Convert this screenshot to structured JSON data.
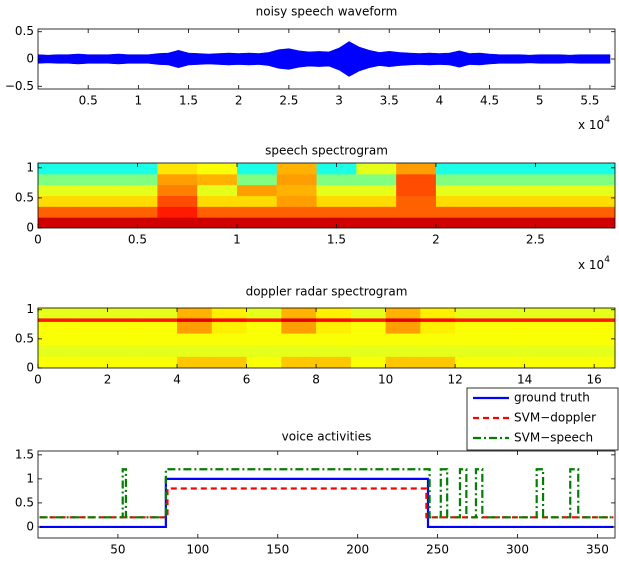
{
  "chart_data": [
    {
      "type": "waveform",
      "title": "noisy speech waveform",
      "color": "#0000ff",
      "x": [
        0,
        1000,
        2000,
        3000,
        4000,
        5000,
        6000,
        7000,
        8000,
        9000,
        10000,
        11000,
        12000,
        13000,
        14000,
        15000,
        16000,
        17000,
        18000,
        19000,
        20000,
        21000,
        22000,
        23000,
        24000,
        25000,
        26000,
        27000,
        28000,
        29000,
        30000,
        31000,
        32000,
        33000,
        34000,
        35000,
        36000,
        37000,
        38000,
        39000,
        40000,
        41000,
        42000,
        43000,
        44000,
        45000,
        46000,
        47000,
        48000,
        49000,
        50000,
        51000,
        52000,
        53000,
        54000,
        55000,
        56000,
        57000
      ],
      "values": [
        0.08,
        0.07,
        0.08,
        0.08,
        0.09,
        0.08,
        0.08,
        0.08,
        0.09,
        0.08,
        0.08,
        0.08,
        0.1,
        0.11,
        0.16,
        0.11,
        0.1,
        0.09,
        0.1,
        0.11,
        0.1,
        0.11,
        0.1,
        0.12,
        0.17,
        0.19,
        0.15,
        0.13,
        0.14,
        0.13,
        0.2,
        0.32,
        0.22,
        0.16,
        0.12,
        0.14,
        0.12,
        0.11,
        0.1,
        0.11,
        0.1,
        0.11,
        0.15,
        0.1,
        0.11,
        0.09,
        0.08,
        0.08,
        0.08,
        0.07,
        0.08,
        0.08,
        0.08,
        0.07,
        0.08,
        0.08,
        0.08,
        0.08
      ],
      "xlim": [
        0,
        57500
      ],
      "ylim": [
        -0.55,
        0.55
      ],
      "xticks": [
        {
          "value": 5000,
          "label": "0.5"
        },
        {
          "value": 10000,
          "label": "1"
        },
        {
          "value": 15000,
          "label": "1.5"
        },
        {
          "value": 20000,
          "label": "2"
        },
        {
          "value": 25000,
          "label": "2.5"
        },
        {
          "value": 30000,
          "label": "3"
        },
        {
          "value": 35000,
          "label": "3.5"
        },
        {
          "value": 40000,
          "label": "4"
        },
        {
          "value": 45000,
          "label": "4.5"
        },
        {
          "value": 50000,
          "label": "5"
        },
        {
          "value": 55000,
          "label": "5.5"
        }
      ],
      "yticks": [
        {
          "value": -0.5,
          "label": "−0.5"
        },
        0,
        0.5
      ],
      "x_multiplier": {
        "base": "x 10",
        "exponent": "4"
      }
    },
    {
      "type": "heatmap",
      "title": "speech spectrogram",
      "colormap": "jet",
      "clim": [
        0,
        1
      ],
      "x_edges": [
        0,
        2000,
        4000,
        6000,
        8000,
        10000,
        12000,
        14000,
        16000,
        18000,
        20000,
        22000,
        24000,
        26000,
        28000,
        29000
      ],
      "y_edges": [
        0,
        0.18,
        0.36,
        0.54,
        0.72,
        0.9,
        1.08
      ],
      "values": [
        [
          0.92,
          0.92,
          0.92,
          0.92,
          0.92,
          0.92,
          0.92,
          0.92,
          0.92,
          0.92,
          0.92,
          0.92,
          0.92,
          0.92,
          0.92
        ],
        [
          0.78,
          0.78,
          0.78,
          0.85,
          0.78,
          0.78,
          0.78,
          0.78,
          0.78,
          0.78,
          0.78,
          0.78,
          0.78,
          0.78,
          0.78
        ],
        [
          0.66,
          0.66,
          0.66,
          0.8,
          0.66,
          0.66,
          0.72,
          0.66,
          0.66,
          0.78,
          0.66,
          0.66,
          0.66,
          0.66,
          0.66
        ],
        [
          0.6,
          0.6,
          0.6,
          0.75,
          0.6,
          0.72,
          0.7,
          0.6,
          0.6,
          0.8,
          0.6,
          0.6,
          0.6,
          0.6,
          0.6
        ],
        [
          0.5,
          0.5,
          0.5,
          0.72,
          0.7,
          0.5,
          0.72,
          0.5,
          0.5,
          0.8,
          0.5,
          0.5,
          0.5,
          0.5,
          0.5
        ],
        [
          0.4,
          0.4,
          0.4,
          0.65,
          0.62,
          0.4,
          0.7,
          0.4,
          0.6,
          0.72,
          0.4,
          0.4,
          0.4,
          0.4,
          0.4
        ]
      ],
      "xlim": [
        0,
        29000
      ],
      "ylim": [
        0,
        1.08
      ],
      "xticks": [
        0,
        {
          "value": 5000,
          "label": "0.5"
        },
        {
          "value": 10000,
          "label": "1"
        },
        {
          "value": 15000,
          "label": "1.5"
        },
        {
          "value": 20000,
          "label": "2"
        },
        {
          "value": 25000,
          "label": "2.5"
        }
      ],
      "yticks": [
        0,
        0.5,
        1
      ],
      "x_multiplier": {
        "base": "x 10",
        "exponent": "4"
      }
    },
    {
      "type": "heatmap",
      "title": "doppler radar spectrogram",
      "colormap": "jet",
      "clim": [
        0,
        1
      ],
      "x_edges": [
        0,
        1,
        2,
        3,
        4,
        5,
        6,
        7,
        8,
        9,
        10,
        11,
        12,
        13,
        14,
        15,
        16,
        16.6
      ],
      "y_edges": [
        0,
        0.2,
        0.4,
        0.6,
        0.8,
        0.86,
        1.03
      ],
      "values": [
        [
          0.62,
          0.62,
          0.62,
          0.62,
          0.68,
          0.68,
          0.62,
          0.68,
          0.68,
          0.62,
          0.68,
          0.68,
          0.62,
          0.62,
          0.62,
          0.62,
          0.62
        ],
        [
          0.6,
          0.6,
          0.6,
          0.6,
          0.6,
          0.6,
          0.6,
          0.6,
          0.6,
          0.6,
          0.6,
          0.6,
          0.6,
          0.6,
          0.6,
          0.6,
          0.6
        ],
        [
          0.62,
          0.62,
          0.62,
          0.62,
          0.62,
          0.62,
          0.62,
          0.62,
          0.62,
          0.62,
          0.62,
          0.62,
          0.62,
          0.62,
          0.62,
          0.62,
          0.62
        ],
        [
          0.62,
          0.62,
          0.62,
          0.62,
          0.72,
          0.64,
          0.62,
          0.72,
          0.64,
          0.62,
          0.72,
          0.64,
          0.62,
          0.62,
          0.62,
          0.62,
          0.62
        ],
        [
          0.85,
          0.85,
          0.85,
          0.85,
          0.9,
          0.87,
          0.85,
          0.9,
          0.87,
          0.85,
          0.9,
          0.87,
          0.85,
          0.85,
          0.85,
          0.85,
          0.85
        ],
        [
          0.6,
          0.6,
          0.6,
          0.6,
          0.7,
          0.64,
          0.6,
          0.7,
          0.64,
          0.6,
          0.7,
          0.64,
          0.6,
          0.6,
          0.6,
          0.6,
          0.6
        ]
      ],
      "xlim": [
        0,
        16.6
      ],
      "ylim": [
        0,
        1.03
      ],
      "xticks": [
        0,
        2,
        4,
        6,
        8,
        10,
        12,
        14,
        16
      ],
      "yticks": [
        0,
        0.5,
        1
      ]
    },
    {
      "type": "line",
      "title": "voice activities",
      "legend": "upper right",
      "series": [
        {
          "name": "ground truth",
          "color": "#0000ff",
          "linestyle": "solid",
          "x": [
            1,
            80,
            80,
            244,
            244,
            360
          ],
          "values": [
            0,
            0,
            1,
            1,
            0,
            0
          ]
        },
        {
          "name": "SVM−doppler",
          "color": "#ff0000",
          "linestyle": "dashed",
          "x": [
            1,
            81,
            81,
            243,
            243,
            360
          ],
          "values": [
            0.2,
            0.2,
            0.8,
            0.8,
            0.2,
            0.2
          ]
        },
        {
          "name": "SVM−speech",
          "color": "#007f00",
          "linestyle": "dashdot",
          "x": [
            1,
            53,
            53,
            55,
            55,
            80,
            80,
            245,
            245,
            252,
            252,
            256,
            256,
            264,
            264,
            268,
            268,
            274,
            274,
            278,
            278,
            312,
            312,
            316,
            316,
            333,
            333,
            338,
            338,
            360
          ],
          "values": [
            0.2,
            0.2,
            1.2,
            1.2,
            0.2,
            0.2,
            1.2,
            1.2,
            0.2,
            0.2,
            1.2,
            1.2,
            0.2,
            0.2,
            1.2,
            1.2,
            0.2,
            0.2,
            1.2,
            1.2,
            0.2,
            0.2,
            1.2,
            1.2,
            0.2,
            0.2,
            1.2,
            1.2,
            0.2,
            0.2
          ]
        }
      ],
      "xlim": [
        0,
        361
      ],
      "ylim": [
        -0.23,
        1.58
      ],
      "xticks": [
        50,
        100,
        150,
        200,
        250,
        300,
        350
      ],
      "yticks": [
        0,
        0.5,
        1,
        1.5
      ]
    }
  ]
}
